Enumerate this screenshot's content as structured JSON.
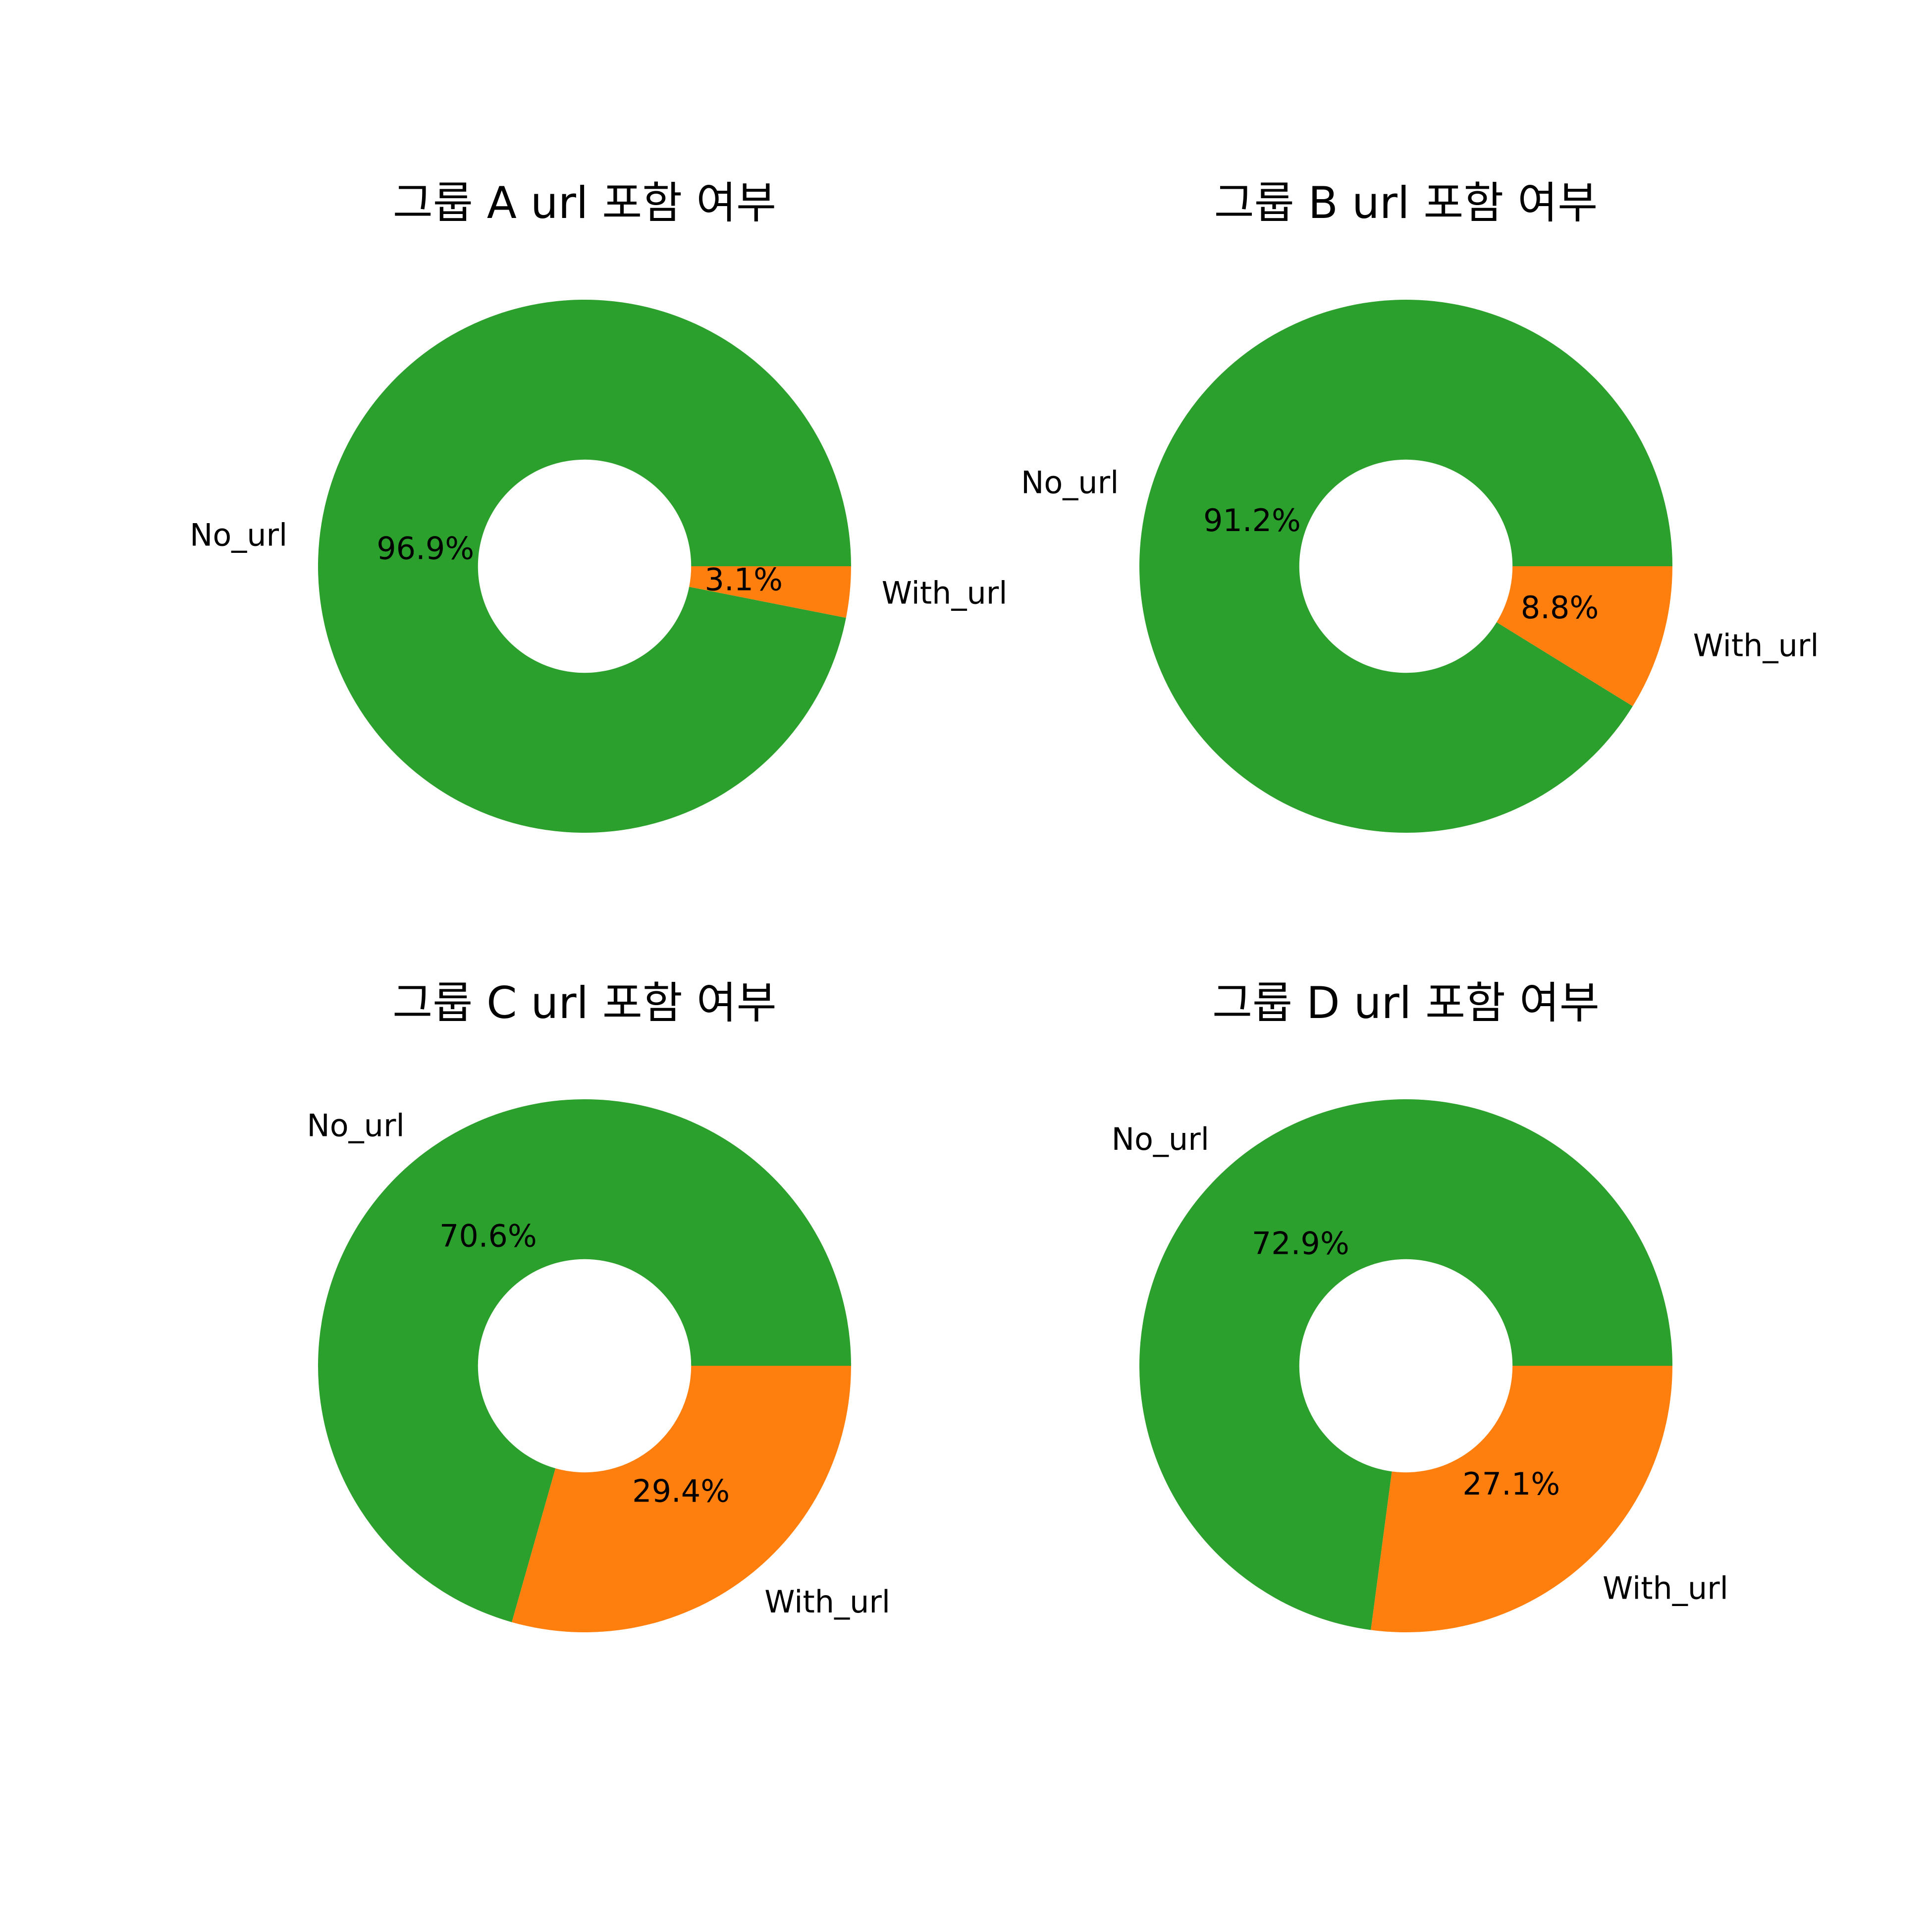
{
  "chart_data": [
    {
      "type": "pie",
      "title": "그룹 A url 포함 여부",
      "hole_fraction": 0.4,
      "slices": [
        {
          "label": "No_url",
          "value": 96.9,
          "pct_label": "96.9%",
          "color": "#2ca02c"
        },
        {
          "label": "With_url",
          "value": 3.1,
          "pct_label": "3.1%",
          "color": "#ff7f0e"
        }
      ]
    },
    {
      "type": "pie",
      "title": "그룹 B url 포함 여부",
      "hole_fraction": 0.4,
      "slices": [
        {
          "label": "No_url",
          "value": 91.2,
          "pct_label": "91.2%",
          "color": "#2ca02c"
        },
        {
          "label": "With_url",
          "value": 8.8,
          "pct_label": "8.8%",
          "color": "#ff7f0e"
        }
      ]
    },
    {
      "type": "pie",
      "title": "그룹 C url 포함 여부",
      "hole_fraction": 0.4,
      "slices": [
        {
          "label": "No_url",
          "value": 70.6,
          "pct_label": "70.6%",
          "color": "#2ca02c"
        },
        {
          "label": "With_url",
          "value": 29.4,
          "pct_label": "29.4%",
          "color": "#ff7f0e"
        }
      ]
    },
    {
      "type": "pie",
      "title": "그룹 D url 포함 여부",
      "hole_fraction": 0.4,
      "slices": [
        {
          "label": "No_url",
          "value": 72.9,
          "pct_label": "72.9%",
          "color": "#2ca02c"
        },
        {
          "label": "With_url",
          "value": 27.1,
          "pct_label": "27.1%",
          "color": "#ff7f0e"
        }
      ]
    }
  ]
}
